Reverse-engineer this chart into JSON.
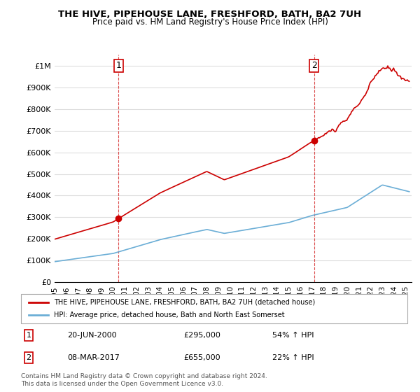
{
  "title": "THE HIVE, PIPEHOUSE LANE, FRESHFORD, BATH, BA2 7UH",
  "subtitle": "Price paid vs. HM Land Registry's House Price Index (HPI)",
  "ylabel_ticks": [
    "£0",
    "£100K",
    "£200K",
    "£300K",
    "£400K",
    "£500K",
    "£600K",
    "£700K",
    "£800K",
    "£900K",
    "£1M"
  ],
  "ytick_values": [
    0,
    100000,
    200000,
    300000,
    400000,
    500000,
    600000,
    700000,
    800000,
    900000,
    1000000
  ],
  "xlim_start": 1995.0,
  "xlim_end": 2025.5,
  "ylim": [
    0,
    1050000
  ],
  "sale1_date": 2000.47,
  "sale1_price": 295000,
  "sale2_date": 2017.18,
  "sale2_price": 655000,
  "legend_line1": "THE HIVE, PIPEHOUSE LANE, FRESHFORD, BATH, BA2 7UH (detached house)",
  "legend_line2": "HPI: Average price, detached house, Bath and North East Somerset",
  "table_row1": [
    "1",
    "20-JUN-2000",
    "£295,000",
    "54% ↑ HPI"
  ],
  "table_row2": [
    "2",
    "08-MAR-2017",
    "£655,000",
    "22% ↑ HPI"
  ],
  "footnote": "Contains HM Land Registry data © Crown copyright and database right 2024.\nThis data is licensed under the Open Government Licence v3.0.",
  "hpi_color": "#6baed6",
  "price_color": "#cc0000",
  "marker_color": "#cc0000",
  "grid_color": "#dddddd",
  "background_color": "#ffffff"
}
